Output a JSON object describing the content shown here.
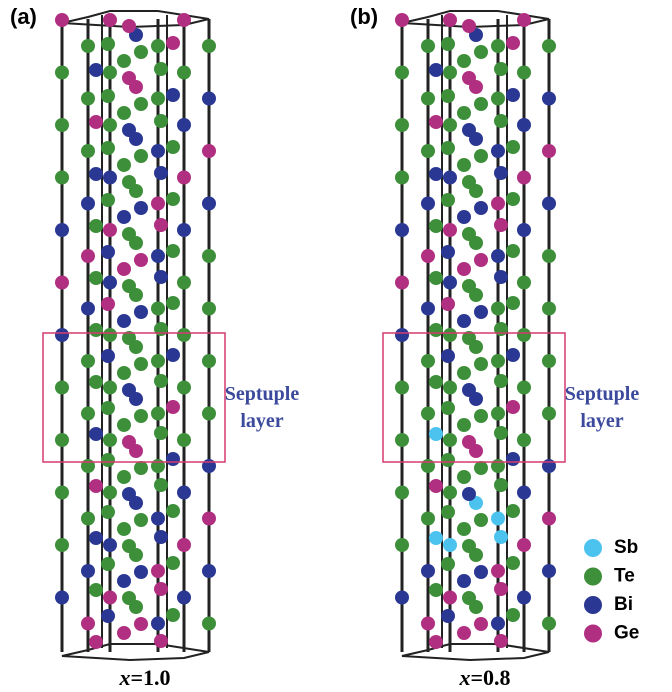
{
  "panels": [
    {
      "tag": "(a)",
      "box_label": [
        "Septuple",
        "layer"
      ],
      "caption": {
        "italic": "x",
        "rest": "=1.0"
      }
    },
    {
      "tag": "(b)",
      "box_label": [
        "Septuple",
        "layer"
      ],
      "caption": {
        "italic": "x",
        "rest": "=0.8"
      }
    }
  ],
  "legend": [
    {
      "name": "Sb",
      "color": "#4cc3ee"
    },
    {
      "name": "Te",
      "color": "#3d8f3a"
    },
    {
      "name": "Bi",
      "color": "#2a3894"
    },
    {
      "name": "Ge",
      "color": "#b02f80"
    }
  ]
}
